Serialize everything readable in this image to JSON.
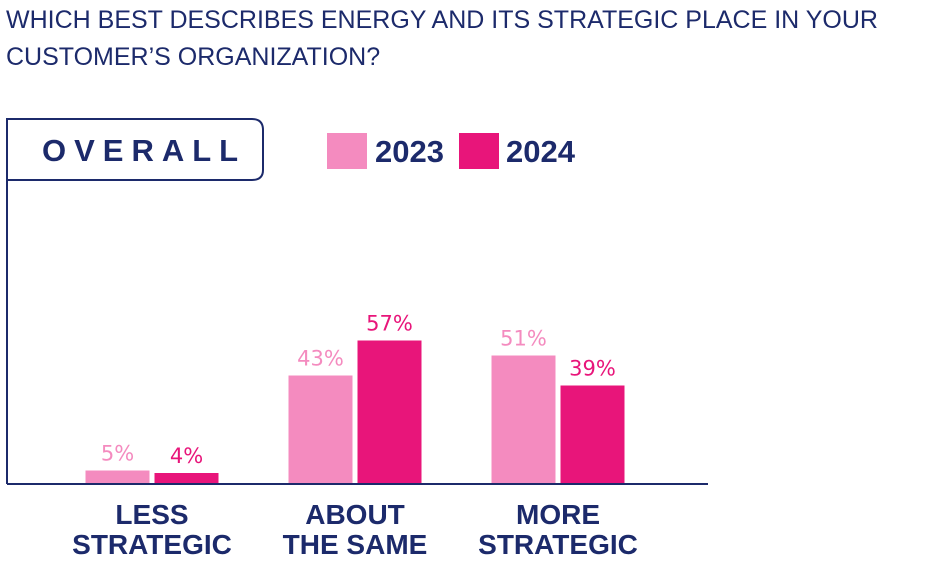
{
  "header": {
    "question": "WHICH BEST DESCRIBES ENERGY AND ITS STRATEGIC PLACE IN YOUR CUSTOMER’S ORGANIZATION?"
  },
  "chart_data": {
    "type": "bar",
    "title": "OVERALL",
    "categories": [
      {
        "line1": "LESS",
        "line2": "STRATEGIC"
      },
      {
        "line1": "ABOUT",
        "line2": "THE SAME"
      },
      {
        "line1": "MORE",
        "line2": "STRATEGIC"
      }
    ],
    "series": [
      {
        "name": "2023",
        "color": "#f48bbf",
        "values": [
          5,
          43,
          51
        ]
      },
      {
        "name": "2024",
        "color": "#e8157a",
        "values": [
          4,
          57,
          39
        ]
      }
    ],
    "value_suffix": "%",
    "ylim": [
      0,
      100
    ],
    "legend": "top",
    "grid": false
  }
}
